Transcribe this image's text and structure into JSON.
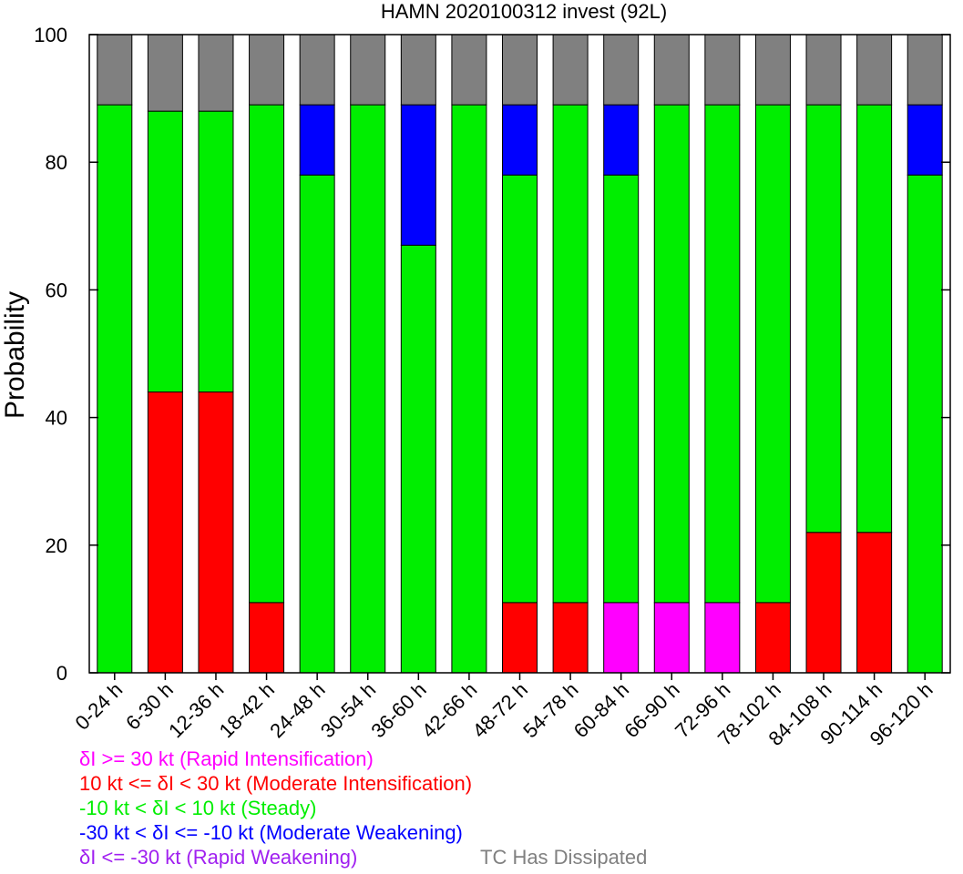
{
  "chart_data": {
    "type": "bar",
    "stacked": true,
    "title": "HAMN 2020100312 invest (92L)",
    "xlabel": "",
    "ylabel": "Probability",
    "ylim": [
      0,
      100
    ],
    "yticks": [
      0,
      20,
      40,
      60,
      80,
      100
    ],
    "grid": false,
    "categories": [
      "0-24 h",
      "6-30 h",
      "12-36 h",
      "18-42 h",
      "24-48 h",
      "30-54 h",
      "36-60 h",
      "42-66 h",
      "48-72 h",
      "54-78 h",
      "60-84 h",
      "66-90 h",
      "72-96 h",
      "78-102 h",
      "84-108 h",
      "90-114 h",
      "96-120 h"
    ],
    "series": [
      {
        "key": "ri",
        "color": "#ff00ff",
        "values": [
          0,
          0,
          0,
          0,
          0,
          0,
          0,
          0,
          0,
          0,
          11,
          11,
          11,
          0,
          0,
          0,
          0
        ]
      },
      {
        "key": "mi",
        "color": "#ff0000",
        "values": [
          0,
          44,
          44,
          11,
          0,
          0,
          0,
          0,
          11,
          11,
          0,
          0,
          0,
          11,
          22,
          22,
          0
        ]
      },
      {
        "key": "steady",
        "color": "#00ee00",
        "values": [
          89,
          44,
          44,
          78,
          78,
          89,
          67,
          89,
          67,
          78,
          67,
          78,
          78,
          78,
          67,
          67,
          78
        ]
      },
      {
        "key": "mw",
        "color": "#0000ff",
        "values": [
          0,
          0,
          0,
          0,
          11,
          0,
          22,
          0,
          11,
          0,
          11,
          0,
          0,
          0,
          0,
          0,
          11
        ]
      },
      {
        "key": "rw",
        "color": "#a020f0",
        "values": [
          0,
          0,
          0,
          0,
          0,
          0,
          0,
          0,
          0,
          0,
          0,
          0,
          0,
          0,
          0,
          0,
          0
        ]
      },
      {
        "key": "dissipated",
        "color": "#808080",
        "values": [
          11,
          12,
          12,
          11,
          11,
          11,
          11,
          11,
          11,
          11,
          11,
          11,
          11,
          11,
          11,
          11,
          11
        ]
      }
    ],
    "legend": {
      "placement": "bottom-left",
      "entries": [
        {
          "text": "δI >= 30 kt (Rapid Intensification)",
          "color": "#ff00ff"
        },
        {
          "text": "10 kt <= δI < 30 kt (Moderate Intensification)",
          "color": "#ff0000"
        },
        {
          "text": "-10 kt < δI < 10 kt (Steady)",
          "color": "#00ee00"
        },
        {
          "text": "-30 kt < δI <= -10 kt (Moderate Weakening)",
          "color": "#0000ff"
        },
        {
          "text": "δI <= -30 kt (Rapid Weakening)",
          "color": "#a020f0"
        },
        {
          "text": "TC Has Dissipated",
          "color": "#808080"
        }
      ]
    }
  }
}
